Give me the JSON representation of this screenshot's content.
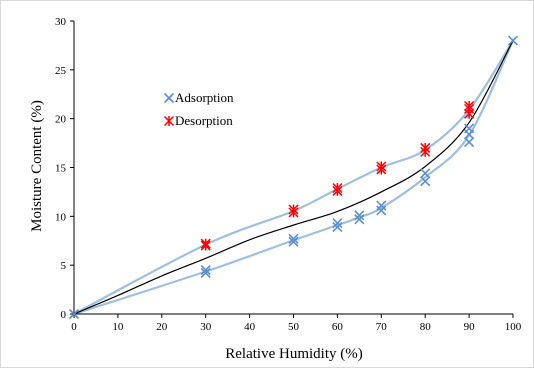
{
  "chart_data": {
    "type": "scatter",
    "title": "",
    "xlabel": "Relative Humidity (%)",
    "ylabel": "Moisture Content (%)",
    "xlim": [
      0,
      100
    ],
    "ylim": [
      0,
      30
    ],
    "xticks": [
      0,
      10,
      20,
      30,
      40,
      50,
      60,
      70,
      80,
      90,
      100
    ],
    "yticks": [
      0,
      5,
      10,
      15,
      20,
      25,
      30
    ],
    "grid": false,
    "legend": "upper-left",
    "series": [
      {
        "name": "Adsorption",
        "marker": "x",
        "color": "#5b8fd1",
        "points": [
          [
            0,
            0
          ],
          [
            30,
            4.2
          ],
          [
            30,
            4.5
          ],
          [
            50,
            7.4
          ],
          [
            50,
            7.7
          ],
          [
            60,
            8.9
          ],
          [
            60,
            9.3
          ],
          [
            65,
            9.7
          ],
          [
            65,
            10.1
          ],
          [
            70,
            10.6
          ],
          [
            70,
            11.1
          ],
          [
            80,
            13.6
          ],
          [
            80,
            14.4
          ],
          [
            90,
            17.6
          ],
          [
            90,
            18.4
          ],
          [
            90,
            19.0
          ],
          [
            100,
            28.0
          ]
        ]
      },
      {
        "name": "Desorption",
        "marker": "asterisk",
        "color": "#ff0000",
        "points": [
          [
            30,
            7.0
          ],
          [
            30,
            7.2
          ],
          [
            50,
            10.4
          ],
          [
            50,
            10.7
          ],
          [
            60,
            12.6
          ],
          [
            60,
            12.9
          ],
          [
            70,
            14.8
          ],
          [
            70,
            15.1
          ],
          [
            80,
            16.6
          ],
          [
            80,
            17.0
          ],
          [
            90,
            20.5
          ],
          [
            90,
            21.0
          ],
          [
            90,
            21.3
          ]
        ]
      }
    ],
    "curves": [
      {
        "role": "desorption-fit",
        "color": "#9fbfe0",
        "points": [
          [
            0,
            0
          ],
          [
            30,
            7.1
          ],
          [
            50,
            10.55
          ],
          [
            60,
            12.8
          ],
          [
            70,
            15.0
          ],
          [
            80,
            16.8
          ],
          [
            90,
            20.9
          ],
          [
            100,
            28.0
          ]
        ]
      },
      {
        "role": "adsorption-fit",
        "color": "#9fbfe0",
        "points": [
          [
            0,
            0
          ],
          [
            30,
            4.35
          ],
          [
            50,
            7.55
          ],
          [
            60,
            9.1
          ],
          [
            65,
            9.9
          ],
          [
            70,
            10.85
          ],
          [
            80,
            14.0
          ],
          [
            90,
            18.3
          ],
          [
            100,
            28.0
          ]
        ]
      },
      {
        "role": "average-fit",
        "color": "#000000",
        "points": [
          [
            0,
            0
          ],
          [
            10,
            1.9
          ],
          [
            20,
            3.9
          ],
          [
            30,
            5.7
          ],
          [
            40,
            7.6
          ],
          [
            50,
            9.1
          ],
          [
            60,
            10.5
          ],
          [
            70,
            12.5
          ],
          [
            80,
            15.1
          ],
          [
            90,
            19.6
          ],
          [
            100,
            28.0
          ]
        ]
      }
    ]
  }
}
